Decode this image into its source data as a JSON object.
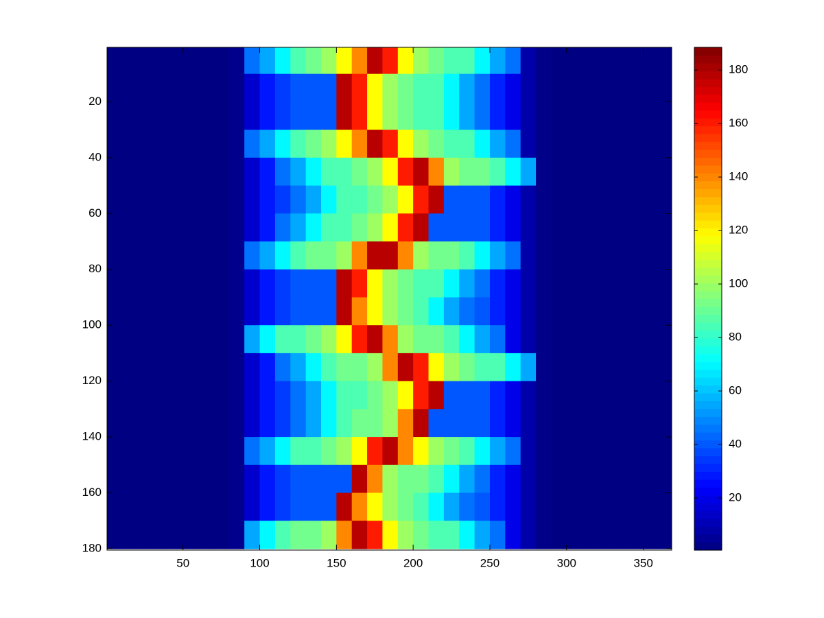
{
  "chart_data": {
    "type": "heatmap",
    "colormap": "jet",
    "x": [
      5,
      15,
      25,
      35,
      45,
      55,
      65,
      75,
      85,
      95,
      105,
      115,
      125,
      135,
      145,
      155,
      165,
      175,
      185,
      195,
      205,
      215,
      225,
      235,
      245,
      255,
      265,
      275,
      285,
      295,
      305,
      315,
      325,
      335,
      345,
      355,
      365
    ],
    "y": [
      5,
      15,
      25,
      35,
      45,
      55,
      65,
      75,
      85,
      95,
      105,
      115,
      125,
      135,
      145,
      155,
      165,
      175
    ],
    "z": [
      [
        1,
        1,
        1,
        1,
        1,
        1,
        1,
        1,
        3,
        45,
        55,
        70,
        85,
        92,
        100,
        118,
        140,
        178,
        160,
        118,
        100,
        92,
        85,
        85,
        70,
        55,
        45,
        8,
        2,
        1,
        1,
        1,
        1,
        1,
        1,
        1,
        1
      ],
      [
        1,
        1,
        1,
        1,
        1,
        1,
        1,
        1,
        3,
        15,
        28,
        35,
        40,
        40,
        40,
        178,
        160,
        118,
        100,
        92,
        85,
        85,
        70,
        55,
        45,
        30,
        20,
        8,
        2,
        1,
        1,
        1,
        1,
        1,
        1,
        1,
        1
      ],
      [
        1,
        1,
        1,
        1,
        1,
        1,
        1,
        1,
        3,
        15,
        28,
        35,
        40,
        40,
        40,
        178,
        160,
        118,
        100,
        92,
        85,
        85,
        70,
        55,
        45,
        30,
        20,
        8,
        2,
        1,
        1,
        1,
        1,
        1,
        1,
        1,
        1
      ],
      [
        1,
        1,
        1,
        1,
        1,
        1,
        1,
        1,
        3,
        45,
        55,
        70,
        85,
        92,
        100,
        118,
        140,
        178,
        160,
        118,
        100,
        92,
        85,
        85,
        70,
        55,
        45,
        8,
        2,
        1,
        1,
        1,
        1,
        1,
        1,
        1,
        1
      ],
      [
        1,
        1,
        1,
        1,
        1,
        1,
        1,
        1,
        3,
        15,
        28,
        45,
        55,
        70,
        85,
        85,
        92,
        100,
        118,
        160,
        178,
        140,
        100,
        92,
        92,
        85,
        70,
        55,
        2,
        1,
        1,
        1,
        1,
        1,
        1,
        1,
        1
      ],
      [
        1,
        1,
        1,
        1,
        1,
        1,
        1,
        1,
        3,
        15,
        28,
        35,
        45,
        55,
        70,
        85,
        85,
        92,
        100,
        118,
        160,
        178,
        40,
        40,
        40,
        30,
        20,
        8,
        2,
        1,
        1,
        1,
        1,
        1,
        1,
        1,
        1
      ],
      [
        1,
        1,
        1,
        1,
        1,
        1,
        1,
        1,
        3,
        15,
        28,
        45,
        55,
        70,
        85,
        85,
        92,
        100,
        118,
        160,
        178,
        40,
        40,
        40,
        40,
        30,
        20,
        8,
        2,
        1,
        1,
        1,
        1,
        1,
        1,
        1,
        1
      ],
      [
        1,
        1,
        1,
        1,
        1,
        1,
        1,
        1,
        3,
        45,
        55,
        70,
        85,
        92,
        92,
        100,
        140,
        178,
        178,
        140,
        100,
        92,
        92,
        85,
        70,
        55,
        45,
        8,
        2,
        1,
        1,
        1,
        1,
        1,
        1,
        1,
        1
      ],
      [
        1,
        1,
        1,
        1,
        1,
        1,
        1,
        1,
        3,
        15,
        28,
        35,
        40,
        40,
        40,
        178,
        160,
        118,
        100,
        92,
        85,
        85,
        70,
        55,
        45,
        30,
        20,
        8,
        2,
        1,
        1,
        1,
        1,
        1,
        1,
        1,
        1
      ],
      [
        1,
        1,
        1,
        1,
        1,
        1,
        1,
        1,
        3,
        15,
        28,
        35,
        40,
        40,
        40,
        178,
        140,
        118,
        100,
        92,
        85,
        70,
        55,
        45,
        40,
        30,
        20,
        8,
        2,
        1,
        1,
        1,
        1,
        1,
        1,
        1,
        1
      ],
      [
        1,
        1,
        1,
        1,
        1,
        1,
        1,
        1,
        3,
        55,
        70,
        85,
        85,
        92,
        100,
        118,
        160,
        178,
        140,
        100,
        92,
        92,
        85,
        70,
        55,
        45,
        20,
        8,
        2,
        1,
        1,
        1,
        1,
        1,
        1,
        1,
        1
      ],
      [
        1,
        1,
        1,
        1,
        1,
        1,
        1,
        1,
        3,
        15,
        28,
        45,
        55,
        70,
        85,
        92,
        92,
        100,
        140,
        178,
        160,
        118,
        100,
        92,
        85,
        85,
        70,
        55,
        2,
        1,
        1,
        1,
        1,
        1,
        1,
        1,
        1
      ],
      [
        1,
        1,
        1,
        1,
        1,
        1,
        1,
        1,
        3,
        15,
        28,
        35,
        45,
        55,
        70,
        85,
        85,
        92,
        100,
        118,
        160,
        178,
        40,
        40,
        40,
        30,
        20,
        8,
        2,
        1,
        1,
        1,
        1,
        1,
        1,
        1,
        1
      ],
      [
        1,
        1,
        1,
        1,
        1,
        1,
        1,
        1,
        3,
        15,
        28,
        35,
        45,
        55,
        70,
        85,
        92,
        92,
        100,
        140,
        178,
        40,
        40,
        40,
        40,
        30,
        20,
        8,
        2,
        1,
        1,
        1,
        1,
        1,
        1,
        1,
        1
      ],
      [
        1,
        1,
        1,
        1,
        1,
        1,
        1,
        1,
        3,
        45,
        55,
        70,
        85,
        85,
        92,
        100,
        118,
        160,
        178,
        140,
        118,
        100,
        92,
        85,
        70,
        55,
        45,
        8,
        2,
        1,
        1,
        1,
        1,
        1,
        1,
        1,
        1
      ],
      [
        1,
        1,
        1,
        1,
        1,
        1,
        1,
        1,
        3,
        15,
        28,
        35,
        40,
        40,
        40,
        40,
        178,
        140,
        100,
        92,
        92,
        85,
        70,
        55,
        45,
        30,
        20,
        8,
        2,
        1,
        1,
        1,
        1,
        1,
        1,
        1,
        1
      ],
      [
        1,
        1,
        1,
        1,
        1,
        1,
        1,
        1,
        3,
        15,
        28,
        35,
        40,
        40,
        40,
        178,
        140,
        118,
        100,
        92,
        85,
        70,
        55,
        45,
        40,
        30,
        20,
        8,
        2,
        1,
        1,
        1,
        1,
        1,
        1,
        1,
        1
      ],
      [
        1,
        1,
        1,
        1,
        1,
        1,
        1,
        1,
        3,
        55,
        70,
        85,
        92,
        92,
        100,
        140,
        178,
        160,
        118,
        100,
        92,
        85,
        85,
        70,
        55,
        45,
        20,
        8,
        2,
        1,
        1,
        1,
        1,
        1,
        1,
        1,
        1
      ]
    ],
    "xlim": [
      0.5,
      368.5
    ],
    "xticks": [
      50,
      100,
      150,
      200,
      250,
      300,
      350
    ],
    "ylim": [
      0.5,
      180.5
    ],
    "y_reversed": true,
    "yticks": [
      20,
      40,
      60,
      80,
      100,
      120,
      140,
      160,
      180
    ],
    "clim": [
      0.5,
      188.5
    ],
    "cticks": [
      20,
      40,
      60,
      80,
      100,
      120,
      140,
      160,
      180
    ]
  }
}
